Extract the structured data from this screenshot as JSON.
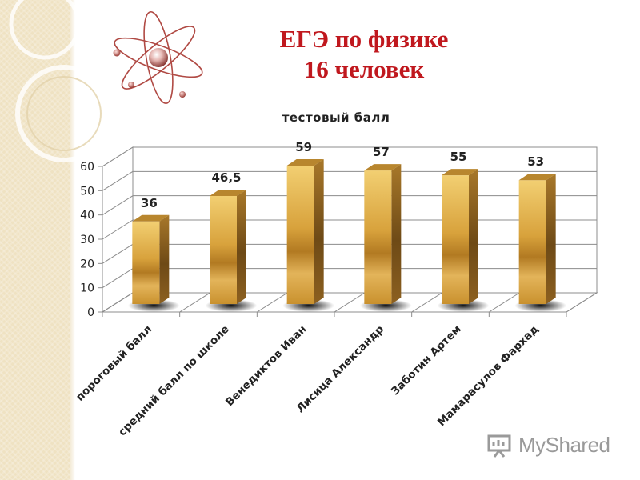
{
  "header": {
    "title_line1": "ЕГЭ по физике",
    "title_line2": "16 человек"
  },
  "chart_data": {
    "type": "bar",
    "title": "тестовый балл",
    "categories": [
      "пороговый балл",
      "средний балл по школе",
      "Венедиктов Иван",
      "Лисица Александр",
      "Заботин Артем",
      "Мамарасулов Фархад"
    ],
    "values": [
      36,
      46.5,
      59,
      57,
      55,
      53
    ],
    "value_labels": [
      "36",
      "46,5",
      "59",
      "57",
      "55",
      "53"
    ],
    "yticks": [
      "0",
      "10",
      "20",
      "30",
      "40",
      "50",
      "60"
    ],
    "ylim": [
      0,
      60
    ],
    "xlabel": "",
    "ylabel": "",
    "grid": true,
    "legend": "none",
    "bar_color": "#d9a83e"
  },
  "watermark": {
    "text": "MyShared",
    "icon": "presentation-board-icon"
  }
}
